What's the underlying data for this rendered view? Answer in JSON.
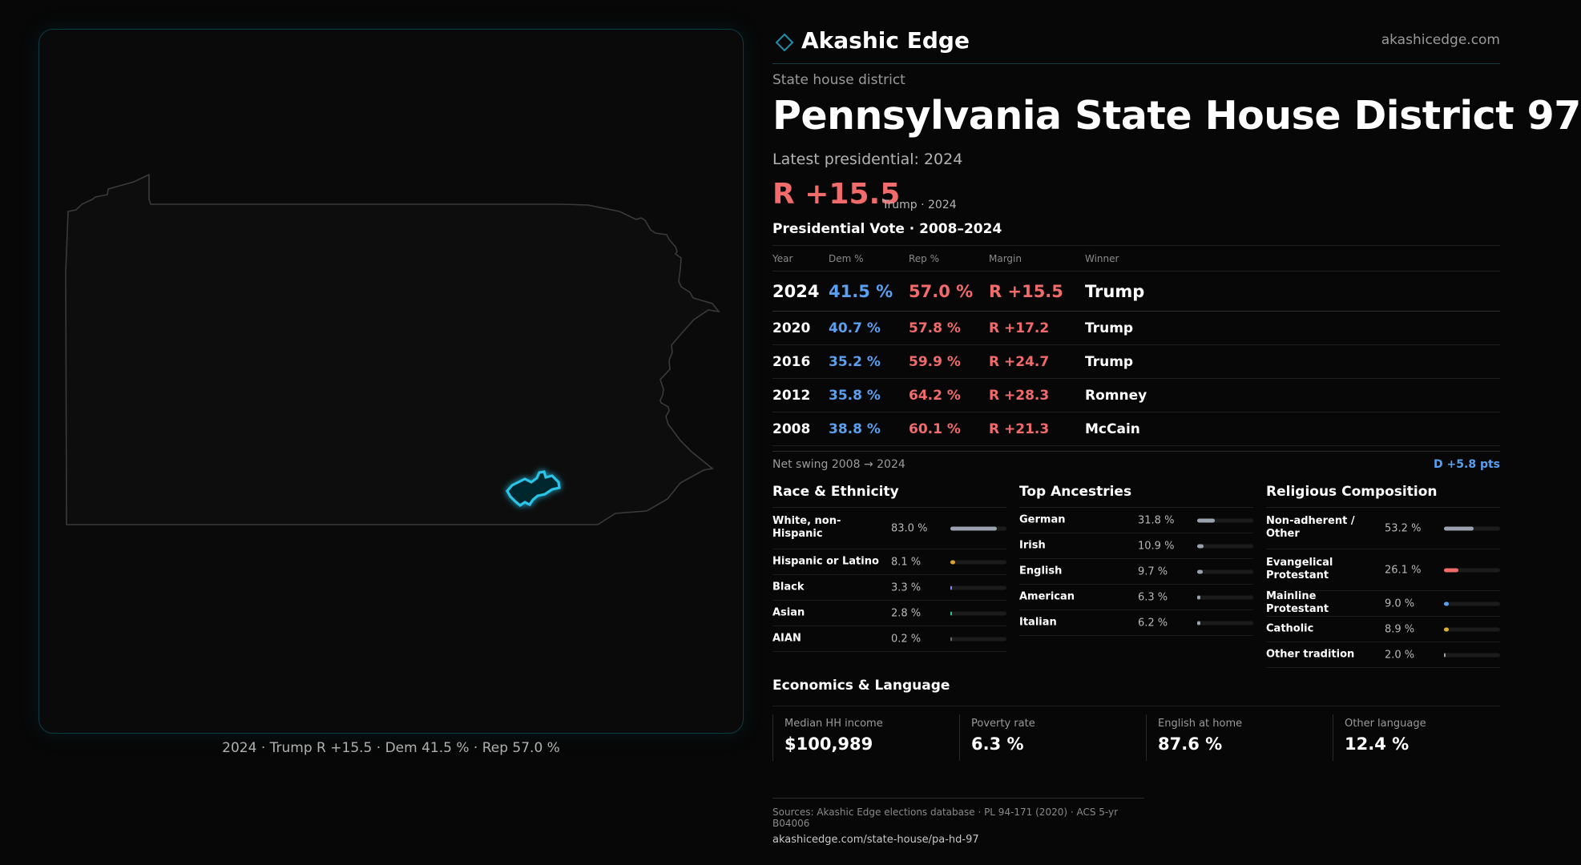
{
  "map": {
    "caption": "2024 · Trump R +15.5 · Dem 41.5 % · Rep 57.0 %",
    "state_outline_color": "#3a3a3a",
    "district_color": "#29c4e8"
  },
  "header": {
    "brand": "Akashic Edge",
    "url": "akashicedge.com",
    "accent_color": "#1f8ea8"
  },
  "district": {
    "kicker": "State house district",
    "title": "Pennsylvania State House District 97",
    "latest_label": "Latest presidential: 2024",
    "latest_margin": "R +15.5",
    "latest_sub": "Trump · 2024"
  },
  "votes": {
    "title": "Presidential Vote · 2008–2024",
    "columns": [
      "Year",
      "Dem %",
      "Rep %",
      "Margin",
      "Winner"
    ],
    "rows": [
      {
        "year": "2024",
        "dem": "41.5 %",
        "rep": "57.0 %",
        "margin": "R +15.5",
        "winner": "Trump"
      },
      {
        "year": "2020",
        "dem": "40.7 %",
        "rep": "57.8 %",
        "margin": "R +17.2",
        "winner": "Trump"
      },
      {
        "year": "2016",
        "dem": "35.2 %",
        "rep": "59.9 %",
        "margin": "R +24.7",
        "winner": "Trump"
      },
      {
        "year": "2012",
        "dem": "35.8 %",
        "rep": "64.2 %",
        "margin": "R +28.3",
        "winner": "Romney"
      },
      {
        "year": "2008",
        "dem": "38.8 %",
        "rep": "60.1 %",
        "margin": "R +21.3",
        "winner": "McCain"
      }
    ],
    "dem_color": "#5a9ff0",
    "rep_color": "#f26b6b"
  },
  "swing": {
    "label": "Net swing 2008 → 2024",
    "value": "D +5.8 pts"
  },
  "race": {
    "title": "Race & Ethnicity",
    "items": [
      {
        "label": "White, non-Hispanic",
        "value": "83.0 %",
        "pct": 83.0,
        "color": "#9aa2ad"
      },
      {
        "label": "Hispanic or Latino",
        "value": "8.1 %",
        "pct": 8.1,
        "color": "#e0a030"
      },
      {
        "label": "Black",
        "value": "3.3 %",
        "pct": 3.3,
        "color": "#7b8cf0"
      },
      {
        "label": "Asian",
        "value": "2.8 %",
        "pct": 2.8,
        "color": "#2ec58a"
      },
      {
        "label": "AIAN",
        "value": "0.2 %",
        "pct": 0.2,
        "color": "#666666"
      }
    ]
  },
  "ancestry": {
    "title": "Top Ancestries",
    "items": [
      {
        "label": "German",
        "value": "31.8 %",
        "pct": 31.8,
        "color": "#9aa2ad"
      },
      {
        "label": "Irish",
        "value": "10.9 %",
        "pct": 10.9,
        "color": "#9aa2ad"
      },
      {
        "label": "English",
        "value": "9.7 %",
        "pct": 9.7,
        "color": "#9aa2ad"
      },
      {
        "label": "American",
        "value": "6.3 %",
        "pct": 6.3,
        "color": "#9aa2ad"
      },
      {
        "label": "Italian",
        "value": "6.2 %",
        "pct": 6.2,
        "color": "#9aa2ad"
      }
    ]
  },
  "religion": {
    "title": "Religious Composition",
    "items": [
      {
        "label": "Non-adherent / Other",
        "value": "53.2 %",
        "pct": 53.2,
        "color": "#9aa2ad"
      },
      {
        "label": "Evangelical Protestant",
        "value": "26.1 %",
        "pct": 26.1,
        "color": "#f26b6b"
      },
      {
        "label": "Mainline Protestant",
        "value": "9.0 %",
        "pct": 9.0,
        "color": "#5a9ff0"
      },
      {
        "label": "Catholic",
        "value": "8.9 %",
        "pct": 8.9,
        "color": "#e0b030"
      },
      {
        "label": "Other tradition",
        "value": "2.0 %",
        "pct": 2.0,
        "color": "#9aa2ad"
      }
    ]
  },
  "economics": {
    "title": "Economics & Language",
    "items": [
      {
        "label": "Median HH income",
        "value": "$100,989"
      },
      {
        "label": "Poverty rate",
        "value": "6.3 %"
      },
      {
        "label": "English at home",
        "value": "87.6 %"
      },
      {
        "label": "Other language",
        "value": "12.4 %"
      }
    ]
  },
  "sources": {
    "text": "Sources: Akashic Edge elections database · PL 94-171 (2020) · ACS 5-yr B04006",
    "url": "akashicedge.com/state-house/pa-hd-97"
  }
}
